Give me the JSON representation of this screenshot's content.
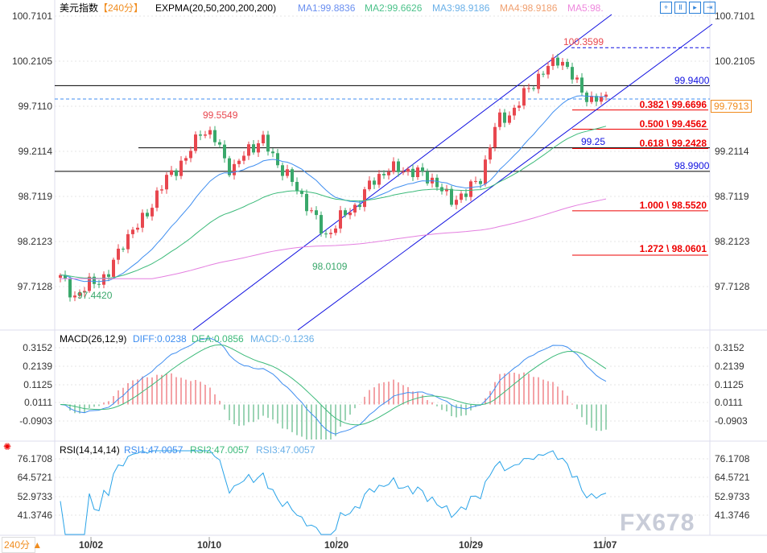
{
  "header": {
    "symbol": "美元指数",
    "period": "【240分】",
    "indicator": "EXPMA(20,50,200,200,200)",
    "ma1": "MA1:99.8836",
    "ma2": "MA2:99.6626",
    "ma3": "MA3:98.9186",
    "ma4": "MA4:98.9186",
    "ma5": "MA5:98."
  },
  "colors": {
    "up": "#e8474f",
    "down": "#3aa86b",
    "ma1": "#3f8ef0",
    "ma2": "#3cba7a",
    "ma3": "#e47fe0",
    "channel": "#1010e0",
    "fib": "#ee0000",
    "current": "#f08c1e"
  },
  "price_axis": [
    "100.7101",
    "100.2105",
    "99.7110",
    "99.2114",
    "98.7119",
    "98.2123",
    "97.7128"
  ],
  "annotations": {
    "high1": "99.5549",
    "low1": "97.4420",
    "low2": "98.0109",
    "high2": "100.3599",
    "current": "99.7913",
    "res1": "99.9400",
    "sup1": "99.25",
    "sup2": "98.9900"
  },
  "fib": [
    "0.382 \\ 99.6696",
    "0.500 \\ 99.4562",
    "0.618 \\ 99.2428",
    "1.000 \\ 98.5520",
    "1.272 \\ 98.0601"
  ],
  "macd": {
    "title": "MACD(26,12,9)",
    "diff": "DIFF:0.0238",
    "dea": "DEA:0.0856",
    "macd": "MACD:-0.1236",
    "axis": [
      "0.3152",
      "0.2139",
      "0.1125",
      "0.0111",
      "-0.0903"
    ]
  },
  "rsi": {
    "title": "RSI(14,14,14)",
    "rsi1": "RSI1:47.0057",
    "rsi2": "RSI2:47.0057",
    "rsi3": "RSI3:47.0057",
    "axis": [
      "76.1708",
      "64.5721",
      "52.9733",
      "41.3746"
    ]
  },
  "dates": [
    "10/02",
    "10/10",
    "10/20",
    "10/29",
    "11/07"
  ],
  "period_button": "240分 ▲",
  "watermark": "FX678",
  "chart_data": {
    "type": "candlestick",
    "title": "美元指数",
    "ylim": [
      97.44,
      100.71
    ],
    "approx_close_path": [
      97.81,
      97.59,
      97.77,
      97.81,
      98.21,
      98.39,
      98.66,
      98.97,
      99.1,
      99.46,
      99.33,
      98.97,
      99.24,
      99.33,
      99.06,
      98.84,
      98.57,
      98.26,
      98.48,
      98.61,
      98.88,
      99.01,
      99.01,
      98.97,
      98.88,
      98.66,
      98.75,
      98.93,
      99.55,
      99.64,
      99.91,
      100.09,
      100.26,
      99.99,
      99.77,
      99.8
    ],
    "x_ticks": [
      "10/02",
      "10/10",
      "10/20",
      "10/29",
      "11/07"
    ]
  }
}
